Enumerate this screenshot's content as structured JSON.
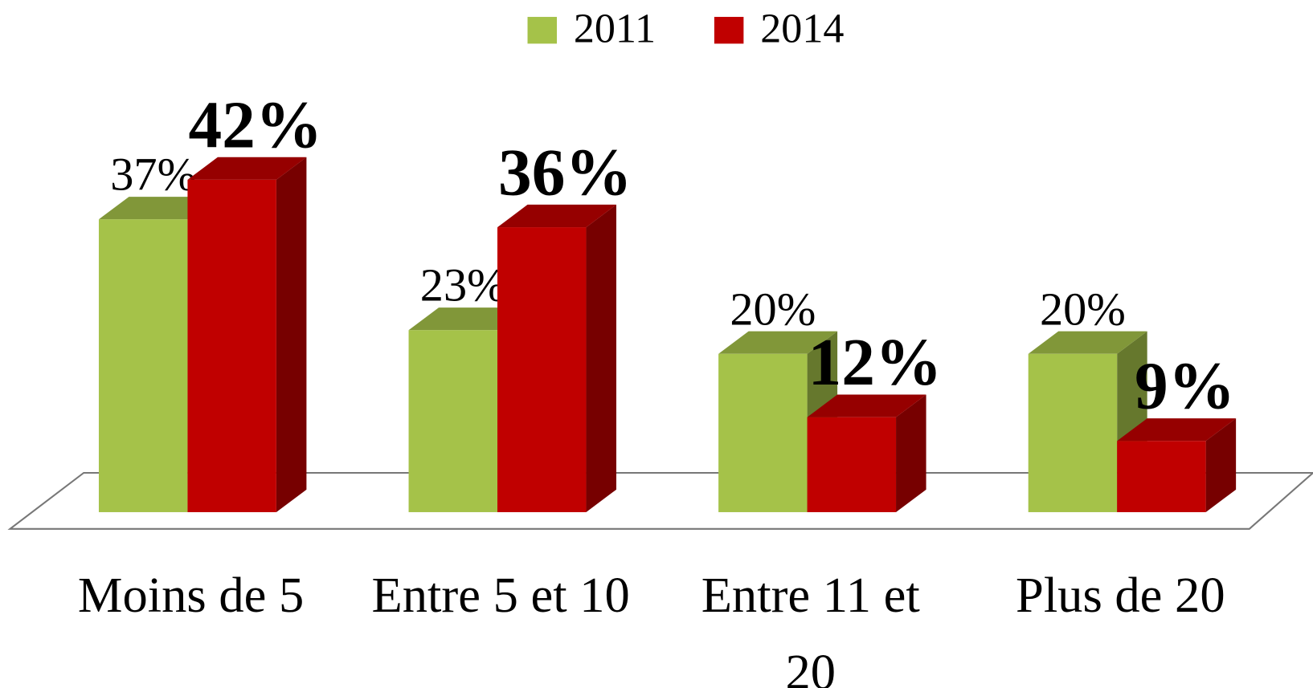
{
  "chart_data": {
    "type": "bar3d",
    "categories": [
      "Moins de 5",
      "Entre 5 et 10",
      "Entre 11 et 20",
      "Plus de 20"
    ],
    "series": [
      {
        "name": "2011",
        "color": "#a5c249",
        "values": [
          37,
          23,
          20,
          20
        ],
        "value_labels": [
          "37%",
          "23%",
          "20%",
          "20%"
        ]
      },
      {
        "name": "2014",
        "color": "#c00000",
        "values": [
          42,
          36,
          12,
          9
        ],
        "value_labels": [
          "42%",
          "36%",
          "12%",
          "9%"
        ]
      }
    ],
    "legend": "top"
  }
}
